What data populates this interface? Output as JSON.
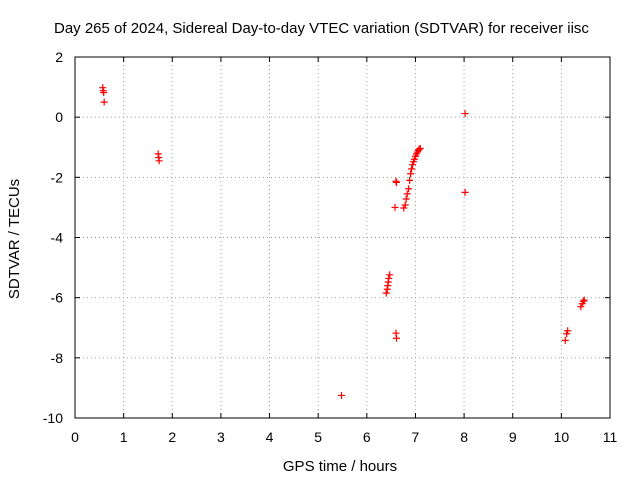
{
  "chart_data": {
    "type": "scatter",
    "title": "Day 265 of 2024, Sidereal Day-to-day VTEC variation (SDTVAR) for receiver iisc",
    "xlabel": "GPS time / hours",
    "ylabel": "SDTVAR / TECUs",
    "xlim": [
      0,
      11
    ],
    "ylim": [
      -10,
      2
    ],
    "x_ticks": [
      0,
      1,
      2,
      3,
      4,
      5,
      6,
      7,
      8,
      9,
      10,
      11
    ],
    "y_ticks": [
      -10,
      -8,
      -6,
      -4,
      -2,
      0,
      2
    ],
    "x_tick_labels": [
      "0",
      "1",
      "2",
      "3",
      "4",
      "5",
      "6",
      "7",
      "8",
      "9",
      "10",
      "11"
    ],
    "y_tick_labels": [
      "-10",
      "-8",
      "-6",
      "-4",
      "-2",
      "0",
      "2"
    ],
    "grid": true,
    "marker": "+",
    "colors": {
      "series": "#ff0000",
      "axis": "#000000",
      "grid": "#a0a0a0",
      "background": "#ffffff"
    },
    "series": [
      {
        "name": "SDTVAR",
        "points": [
          [
            0.57,
            0.98
          ],
          [
            0.58,
            0.88
          ],
          [
            0.59,
            0.82
          ],
          [
            0.6,
            0.5
          ],
          [
            1.71,
            -1.22
          ],
          [
            1.72,
            -1.34
          ],
          [
            1.73,
            -1.45
          ],
          [
            5.48,
            -9.25
          ],
          [
            6.4,
            -5.85
          ],
          [
            6.42,
            -5.72
          ],
          [
            6.43,
            -5.6
          ],
          [
            6.44,
            -5.48
          ],
          [
            6.45,
            -5.36
          ],
          [
            6.47,
            -5.24
          ],
          [
            6.58,
            -3.0
          ],
          [
            6.6,
            -2.13
          ],
          [
            6.61,
            -2.17
          ],
          [
            6.6,
            -7.18
          ],
          [
            6.61,
            -7.35
          ],
          [
            6.76,
            -3.02
          ],
          [
            6.79,
            -2.92
          ],
          [
            6.81,
            -2.72
          ],
          [
            6.83,
            -2.55
          ],
          [
            6.86,
            -2.38
          ],
          [
            6.88,
            -2.1
          ],
          [
            6.9,
            -1.88
          ],
          [
            6.92,
            -1.72
          ],
          [
            6.94,
            -1.58
          ],
          [
            6.96,
            -1.48
          ],
          [
            6.98,
            -1.4
          ],
          [
            7.0,
            -1.3
          ],
          [
            7.02,
            -1.22
          ],
          [
            7.04,
            -1.16
          ],
          [
            7.06,
            -1.1
          ],
          [
            7.08,
            -1.06
          ],
          [
            7.1,
            -1.04
          ],
          [
            8.02,
            0.12
          ],
          [
            8.02,
            -2.5
          ],
          [
            10.08,
            -7.42
          ],
          [
            10.11,
            -7.2
          ],
          [
            10.13,
            -7.1
          ],
          [
            10.4,
            -6.3
          ],
          [
            10.43,
            -6.2
          ],
          [
            10.45,
            -6.12
          ],
          [
            10.47,
            -6.08
          ]
        ]
      }
    ]
  }
}
